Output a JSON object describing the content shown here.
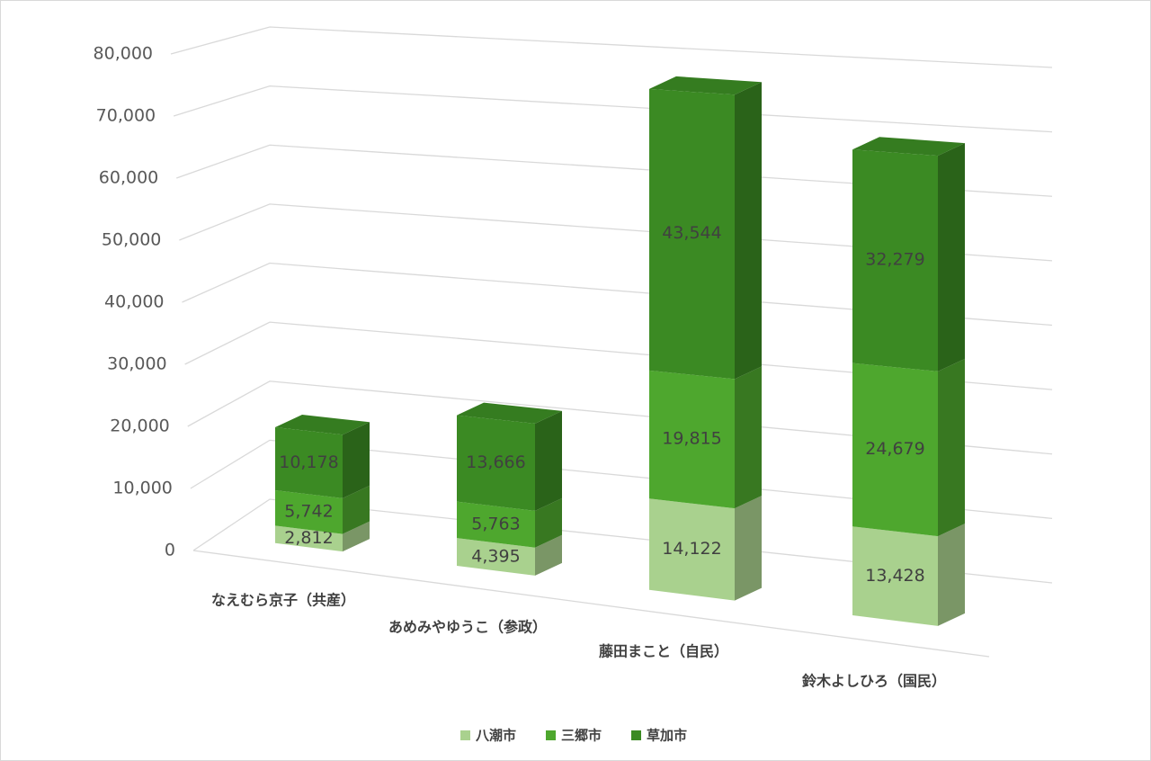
{
  "chart_data": {
    "type": "bar3d_stacked",
    "categories": [
      "なえむら京子（共産）",
      "あめみやゆうこ（参政）",
      "藤田まこと（自民）",
      "鈴木よしひろ（国民）"
    ],
    "series": [
      {
        "name": "八潮市",
        "color": "#a9d18e",
        "values": [
          2812,
          4395,
          14122,
          13428
        ],
        "value_labels": [
          "2,812",
          "4,395",
          "14,122",
          "13,428"
        ]
      },
      {
        "name": "三郷市",
        "color": "#4ea72e",
        "values": [
          5742,
          5763,
          19815,
          24679
        ],
        "value_labels": [
          "5,742",
          "5,763",
          "19,815",
          "24,679"
        ]
      },
      {
        "name": "草加市",
        "color": "#3b8a23",
        "values": [
          10178,
          13666,
          43544,
          32279
        ],
        "value_labels": [
          "10,178",
          "13,666",
          "43,544",
          "32,279"
        ]
      }
    ],
    "ylim": [
      0,
      80000
    ],
    "yticks": [
      0,
      {
        "value": 10000,
        "label": "10,000"
      },
      {
        "value": 20000,
        "label": "20,000"
      },
      {
        "value": 30000,
        "label": "30,000"
      },
      {
        "value": 40000,
        "label": "40,000"
      },
      {
        "value": 50000,
        "label": "50,000"
      },
      {
        "value": 60000,
        "label": "60,000"
      },
      {
        "value": 70000,
        "label": "70,000"
      },
      {
        "value": 80000,
        "label": "80,000"
      }
    ],
    "grid": true,
    "legend": "bottom"
  }
}
